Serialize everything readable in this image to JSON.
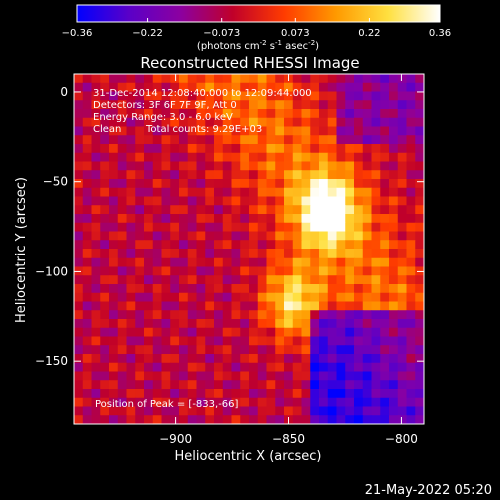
{
  "colorbar": {
    "ticks": [
      "-0.36",
      "-0.22",
      "-0.073",
      "0.073",
      "0.22",
      "0.36"
    ],
    "tick_values": [
      -0.36,
      -0.22,
      -0.073,
      0.073,
      0.22,
      0.36
    ],
    "units_prefix": "(photons cm",
    "units_exp1": "-2",
    "units_mid": " s",
    "units_exp2": "-1",
    "units_mid2": " asec",
    "units_exp3": "-2",
    "units_suffix": ")",
    "stops": [
      "#0000ff",
      "#5a00c8",
      "#8c00a0",
      "#c0002a",
      "#ff3c00",
      "#ff9a00",
      "#ffe040",
      "#ffffff"
    ]
  },
  "chart_data": {
    "type": "heatmap",
    "title": "Reconstructed RHESSI Image",
    "xlabel": "Heliocentric X (arcsec)",
    "ylabel": "Heliocentric Y (arcsec)",
    "xlim": [
      -945,
      -790
    ],
    "ylim": [
      -185,
      10
    ],
    "xticks": [
      -900,
      -850,
      -800
    ],
    "yticks": [
      0,
      -50,
      -100,
      -150
    ],
    "xtick_labels": [
      "−900",
      "−850",
      "−800"
    ],
    "ytick_labels": [
      "0",
      "−50",
      "−100",
      "−150"
    ],
    "value_range": [
      -0.36,
      0.36
    ],
    "sources": [
      {
        "x": -833,
        "y": -66,
        "relative_peak": 1.0
      },
      {
        "x": -848,
        "y": -117,
        "relative_peak": 0.8
      }
    ],
    "annotations": {
      "time_range": "31-Dec-2014 12:08:40.000 to 12:09:44.000",
      "detectors": "Detectors: 3F 6F 7F 9F, Att 0",
      "energy": "Energy Range: 3.0 - 6.0 keV",
      "clean_label": "Clean",
      "total_counts": "Total counts: 9.29E+03",
      "peak": "Position of Peak = [-833,-66]"
    }
  },
  "footer": {
    "timestamp": "21-May-2022 05:20"
  }
}
